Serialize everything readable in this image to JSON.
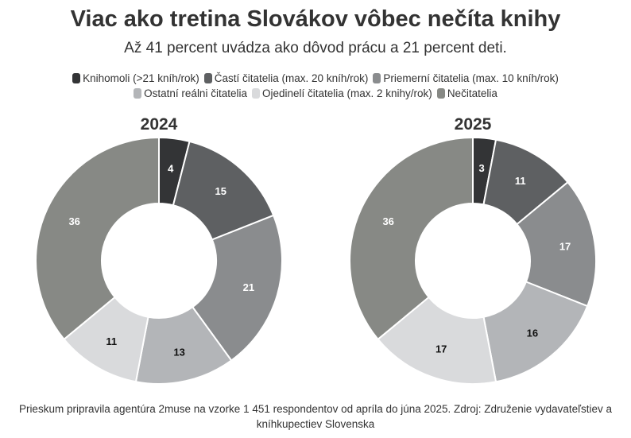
{
  "title": "Viac ako tretina Slovákov vôbec nečíta knihy",
  "subtitle": "Až 41 percent uvádza ako dôvod prácu a 21 percent deti.",
  "source": "Prieskum pripravila agentúra 2muse na vzorke 1 451 respondentov od apríla do júna 2025. Zdroj: Združenie vydavateľstiev a kníhkupectiev Slovenska",
  "chart_data": [
    {
      "type": "pie",
      "variant": "donut",
      "title": "2024",
      "categories": [
        "Knihomoli (>21 kníh/rok)",
        "Častí čitatelia (max. 20 kníh/rok)",
        "Priemerní čitatelia (max. 10 kníh/rok)",
        "Ostatní reálni čitatelia",
        "Ojedinelí čitatelia (max. 2 knihy/rok)",
        "Nečitatelia"
      ],
      "values": [
        4,
        15,
        21,
        13,
        11,
        36
      ]
    },
    {
      "type": "pie",
      "variant": "donut",
      "title": "2025",
      "categories": [
        "Knihomoli (>21 kníh/rok)",
        "Častí čitatelia (max. 20 kníh/rok)",
        "Priemerní čitatelia (max. 10 kníh/rok)",
        "Ostatní reálni čitatelia",
        "Ojedinelí čitatelia (max. 2 knihy/rok)",
        "Nečitatelia"
      ],
      "values": [
        3,
        11,
        17,
        16,
        17,
        36
      ]
    }
  ],
  "legend": [
    {
      "label": "Knihomoli (>21 kníh/rok)",
      "color": "#333436"
    },
    {
      "label": "Častí čitatelia (max. 20 kníh/rok)",
      "color": "#5e6062"
    },
    {
      "label": "Priemerní čitatelia (max. 10 kníh/rok)",
      "color": "#8a8c8e"
    },
    {
      "label": "Ostatní reálni čitatelia",
      "color": "#b3b5b8"
    },
    {
      "label": "Ojedinelí čitatelia (max. 2 knihy/rok)",
      "color": "#d9dadc"
    },
    {
      "label": "Nečitatelia",
      "color": "#878985"
    }
  ],
  "label_colors": [
    "#ffffff",
    "#ffffff",
    "#ffffff",
    "#111111",
    "#111111",
    "#ffffff"
  ]
}
